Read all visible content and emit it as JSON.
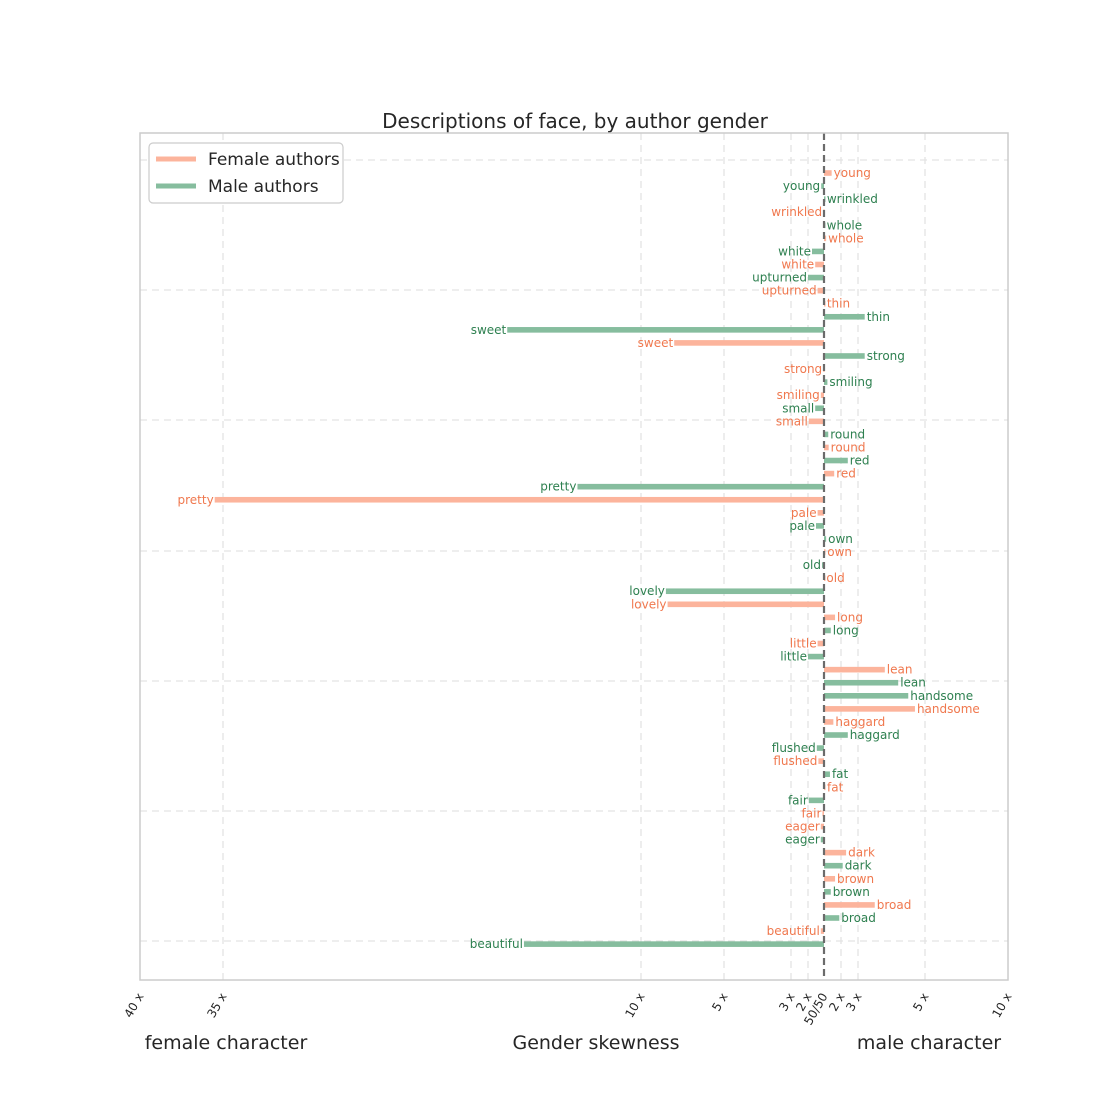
{
  "chart_data": {
    "type": "bar",
    "title": "Descriptions of face, by author gender",
    "xlabel": "Gender skewness",
    "left_label": "female character",
    "right_label": "male character",
    "ticks": [
      {
        "value": -40,
        "label": "40 x"
      },
      {
        "value": -35,
        "label": "35 x"
      },
      {
        "value": -10,
        "label": "10 x"
      },
      {
        "value": -5,
        "label": "5 x"
      },
      {
        "value": -3,
        "label": "3 x"
      },
      {
        "value": -2,
        "label": "2 x"
      },
      {
        "value": 0,
        "label": "50/50"
      },
      {
        "value": 2,
        "label": "2 x"
      },
      {
        "value": 3,
        "label": "3 x"
      },
      {
        "value": 5,
        "label": "5 x"
      },
      {
        "value": 10,
        "label": "10 x"
      }
    ],
    "legend": {
      "placement": "top-left",
      "entries": [
        {
          "key": "female",
          "label": "Female authors",
          "color": "#fcb49c"
        },
        {
          "key": "male",
          "label": "Male authors",
          "color": "#86bd9e"
        }
      ]
    },
    "text_colors": {
      "female": "#f0784e",
      "male": "#2e8050"
    },
    "rows": [
      {
        "word": "young",
        "series": "female",
        "value": 0.9
      },
      {
        "word": "young",
        "series": "male",
        "value": -0.35
      },
      {
        "word": "wrinkled",
        "series": "male",
        "value": 0.1
      },
      {
        "word": "wrinkled",
        "series": "female",
        "value": -0.1
      },
      {
        "word": "whole",
        "series": "male",
        "value": 0.08
      },
      {
        "word": "whole",
        "series": "female",
        "value": 0.25
      },
      {
        "word": "white",
        "series": "male",
        "value": -1.5
      },
      {
        "word": "white",
        "series": "female",
        "value": -1.1
      },
      {
        "word": "upturned",
        "series": "male",
        "value": -2.0
      },
      {
        "word": "upturned",
        "series": "female",
        "value": -0.8
      },
      {
        "word": "thin",
        "series": "female",
        "value": 0.1
      },
      {
        "word": "thin",
        "series": "male",
        "value": 3.2
      },
      {
        "word": "sweet",
        "series": "male",
        "value": -18.0
      },
      {
        "word": "sweet",
        "series": "female",
        "value": -8.0
      },
      {
        "word": "strong",
        "series": "male",
        "value": 3.2
      },
      {
        "word": "strong",
        "series": "female",
        "value": -0.1
      },
      {
        "word": "smiling",
        "series": "male",
        "value": 0.4
      },
      {
        "word": "smiling",
        "series": "female",
        "value": -0.4
      },
      {
        "word": "small",
        "series": "male",
        "value": -1.1
      },
      {
        "word": "small",
        "series": "female",
        "value": -1.9
      },
      {
        "word": "round",
        "series": "male",
        "value": 0.5
      },
      {
        "word": "round",
        "series": "female",
        "value": 0.55
      },
      {
        "word": "red",
        "series": "male",
        "value": 2.4
      },
      {
        "word": "red",
        "series": "female",
        "value": 1.2
      },
      {
        "word": "pretty",
        "series": "male",
        "value": -13.8
      },
      {
        "word": "pretty",
        "series": "female",
        "value": -35.5
      },
      {
        "word": "pale",
        "series": "female",
        "value": -0.8
      },
      {
        "word": "pale",
        "series": "male",
        "value": -1.0
      },
      {
        "word": "own",
        "series": "male",
        "value": 0.25
      },
      {
        "word": "own",
        "series": "female",
        "value": 0.15
      },
      {
        "word": "old",
        "series": "male",
        "value": -0.25
      },
      {
        "word": "old",
        "series": "female",
        "value": 0.05
      },
      {
        "word": "lovely",
        "series": "male",
        "value": -8.5
      },
      {
        "word": "lovely",
        "series": "female",
        "value": -8.4
      },
      {
        "word": "long",
        "series": "female",
        "value": 1.3
      },
      {
        "word": "long",
        "series": "male",
        "value": 0.8
      },
      {
        "word": "little",
        "series": "female",
        "value": -0.8
      },
      {
        "word": "little",
        "series": "male",
        "value": -2.0
      },
      {
        "word": "lean",
        "series": "female",
        "value": 3.8
      },
      {
        "word": "lean",
        "series": "male",
        "value": 4.2
      },
      {
        "word": "handsome",
        "series": "male",
        "value": 4.5
      },
      {
        "word": "handsome",
        "series": "female",
        "value": 4.7
      },
      {
        "word": "haggard",
        "series": "female",
        "value": 1.1
      },
      {
        "word": "haggard",
        "series": "male",
        "value": 2.4
      },
      {
        "word": "flushed",
        "series": "male",
        "value": -0.9
      },
      {
        "word": "flushed",
        "series": "female",
        "value": -0.7
      },
      {
        "word": "fat",
        "series": "male",
        "value": 0.7
      },
      {
        "word": "fat",
        "series": "female",
        "value": 0.12
      },
      {
        "word": "fair",
        "series": "male",
        "value": -1.9
      },
      {
        "word": "fair",
        "series": "female",
        "value": -0.2
      },
      {
        "word": "eager",
        "series": "female",
        "value": -0.4
      },
      {
        "word": "eager",
        "series": "male",
        "value": -0.4
      },
      {
        "word": "dark",
        "series": "female",
        "value": 2.3
      },
      {
        "word": "dark",
        "series": "male",
        "value": 2.1
      },
      {
        "word": "brown",
        "series": "female",
        "value": 1.3
      },
      {
        "word": "brown",
        "series": "male",
        "value": 0.8
      },
      {
        "word": "broad",
        "series": "female",
        "value": 3.5
      },
      {
        "word": "broad",
        "series": "male",
        "value": 1.8
      },
      {
        "word": "beautiful",
        "series": "female",
        "value": -0.4
      },
      {
        "word": "beautiful",
        "series": "male",
        "value": -17.0
      }
    ]
  }
}
